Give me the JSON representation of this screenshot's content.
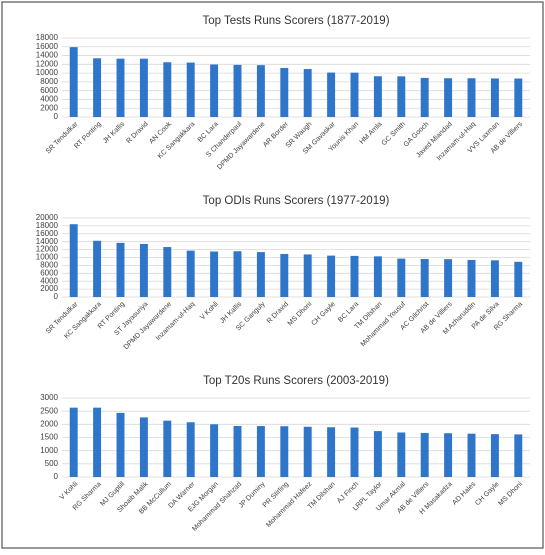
{
  "chart_data": [
    {
      "type": "bar",
      "title": "Top Tests Runs Scorers (1877-2019)",
      "color": "#2f75c9",
      "grid": true,
      "categories": [
        "SR Tendulkar",
        "RT Ponting",
        "JH Kallis",
        "R Dravid",
        "AN Cook",
        "KC Sangakkara",
        "BC Lara",
        "S Chanderpaul",
        "DPMD Jayawardene",
        "AR Border",
        "SR Waugh",
        "SM Gavaskar",
        "Younis Khan",
        "HM Amla",
        "GC Smith",
        "GA Gooch",
        "Javed Miandad",
        "Inzamam-ul-Haq",
        "VVS Laxman",
        "AB de Villiers"
      ],
      "values": [
        15921,
        13378,
        13289,
        13288,
        12472,
        12400,
        11953,
        11867,
        11814,
        11174,
        10927,
        10122,
        10099,
        9282,
        9265,
        8900,
        8832,
        8830,
        8781,
        8765
      ],
      "ylim": [
        0,
        18000
      ],
      "yticks": [
        0,
        2000,
        4000,
        6000,
        8000,
        10000,
        12000,
        14000,
        16000,
        18000
      ]
    },
    {
      "type": "bar",
      "title": "Top ODIs Runs Scorers (1977-2019)",
      "color": "#2f75c9",
      "grid": true,
      "categories": [
        "SR Tendulkar",
        "KC Sangakkara",
        "RT Ponting",
        "ST Jayasuriya",
        "DPMD Jayawardene",
        "Inzamam-ul-Haq",
        "V Kohli",
        "JH Kallis",
        "SC Ganguly",
        "R Dravid",
        "MS Dhoni",
        "CH Gayle",
        "BC Lara",
        "TM Dilshan",
        "Mohammad Yousuf",
        "AC Gilchrist",
        "AB de Villiers",
        "M Azharuddin",
        "PA de Silva",
        "RG Sharma"
      ],
      "values": [
        18426,
        14234,
        13704,
        13430,
        12650,
        11739,
        11520,
        11579,
        11363,
        10889,
        10773,
        10480,
        10405,
        10290,
        9720,
        9619,
        9577,
        9378,
        9284,
        8900
      ],
      "ylim": [
        0,
        20000
      ],
      "yticks": [
        0,
        2000,
        4000,
        6000,
        8000,
        10000,
        12000,
        14000,
        16000,
        18000,
        20000
      ]
    },
    {
      "type": "bar",
      "title": "Top T20s Runs Scorers (2003-2019)",
      "color": "#2f75c9",
      "grid": true,
      "categories": [
        "V Kohli",
        "RG Sharma",
        "MJ Guptill",
        "Shoaib Malik",
        "BB McCullum",
        "DA Warner",
        "EJG Morgan",
        "Mohammad Shahzad",
        "JP Duminy",
        "PR Stirling",
        "Mohammad Hafeez",
        "TM Dilshan",
        "AJ Finch",
        "LRPL Taylor",
        "Umar Akmal",
        "AB de Villiers",
        "H Masakadza",
        "AD Hales",
        "CH Gayle",
        "MS Dhoni"
      ],
      "values": [
        2633,
        2633,
        2436,
        2263,
        2140,
        2079,
        2002,
        1936,
        1934,
        1928,
        1908,
        1889,
        1878,
        1743,
        1690,
        1672,
        1662,
        1644,
        1627,
        1617
      ],
      "ylim": [
        0,
        3000
      ],
      "yticks": [
        0,
        500,
        1000,
        1500,
        2000,
        2500,
        3000
      ]
    }
  ]
}
